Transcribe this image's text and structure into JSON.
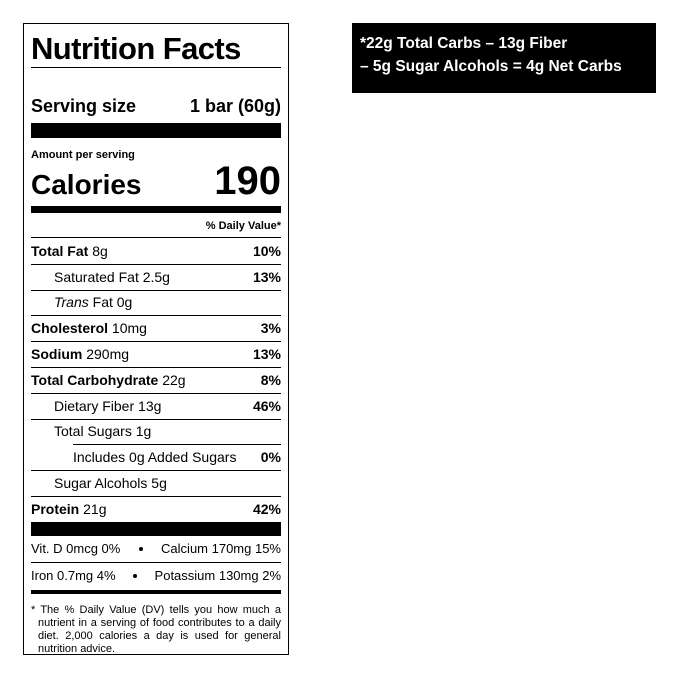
{
  "label": {
    "title": "Nutrition Facts",
    "serving_size_label": "Serving size",
    "serving_size": "1 bar (60g)",
    "amount_per_serving": "Amount per serving",
    "calories_label": "Calories",
    "calories": "190",
    "daily_value_header": "% Daily Value*",
    "nutrients": [
      {
        "name": "Total Fat",
        "amount": "8g",
        "dv": "10%",
        "level": 0
      },
      {
        "name": "Saturated Fat",
        "amount": "2.5g",
        "dv": "13%",
        "level": 1
      },
      {
        "name": "Trans",
        "suffix": "Fat",
        "amount": "0g",
        "level": 1
      },
      {
        "name": "Cholesterol",
        "amount": "10mg",
        "dv": "3%",
        "level": 0
      },
      {
        "name": "Sodium",
        "amount": "290mg",
        "dv": "13%",
        "level": 0
      },
      {
        "name": "Total Carbohydrate",
        "amount": "22g",
        "dv": "8%",
        "level": 0
      },
      {
        "name": "Dietary Fiber",
        "amount": "13g",
        "dv": "46%",
        "level": 1
      },
      {
        "name": "Total Sugars",
        "amount": "1g",
        "level": 1
      },
      {
        "name": "Includes 0g Added Sugars",
        "dv": "0%",
        "level": 2
      },
      {
        "name": "Sugar Alcohols",
        "amount": "5g",
        "level": 1
      },
      {
        "name": "Protein",
        "amount": "21g",
        "dv": "42%",
        "level": 0
      }
    ],
    "vitamins": [
      [
        "Vit. D 0mcg 0%",
        "Calcium 170mg 15%"
      ],
      [
        "Iron 0.7mg 4%",
        "Potassium 130mg 2%"
      ]
    ],
    "footnote": "* The % Daily Value (DV) tells you how much a nutrient in a serving of food contributes to a daily diet. 2,000 calories a day is used for general nutrition advice."
  },
  "note": {
    "lines": [
      "*22g Total Carbs – 13g Fiber",
      "– 5g Sugar Alcohols = 4g Net Carbs"
    ]
  }
}
